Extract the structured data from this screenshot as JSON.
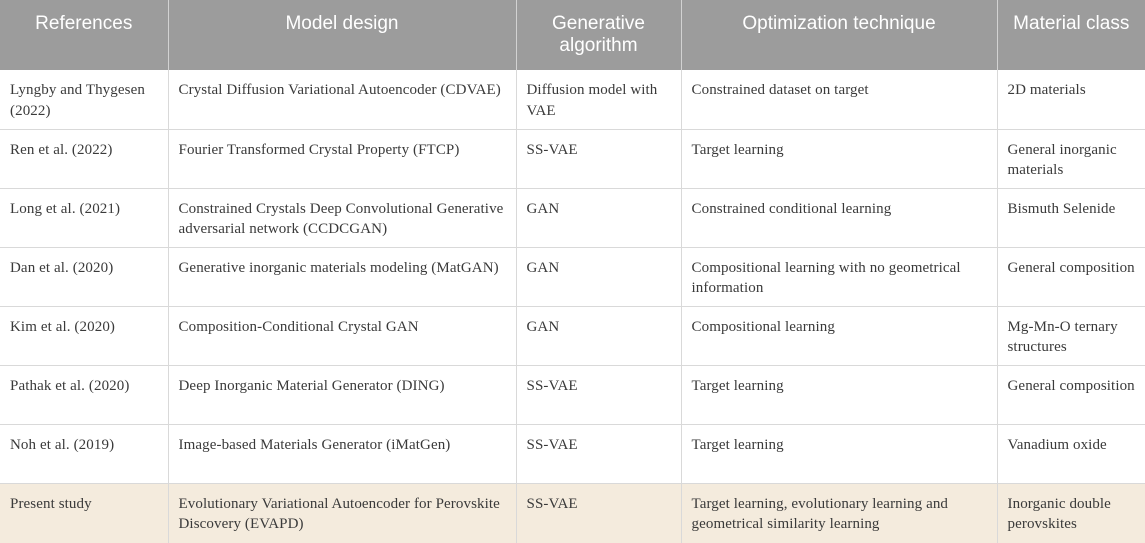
{
  "columns": [
    "References",
    "Model design",
    "Generative algorithm",
    "Optimization technique",
    "Material class"
  ],
  "rows": [
    {
      "reference": "Lyngby and Thygesen (2022)",
      "model": "Crystal Diffusion Variational Autoencoder (CDVAE)",
      "algorithm": "Diffusion model with VAE",
      "optimization": "Constrained dataset on target",
      "material": "2D materials"
    },
    {
      "reference": "Ren et al. (2022)",
      "model": "Fourier Transformed Crystal Property (FTCP)",
      "algorithm": "SS-VAE",
      "optimization": "Target learning",
      "material": "General inorganic materials"
    },
    {
      "reference": "Long et al. (2021)",
      "model": "Constrained Crystals Deep Convolutional Generative adversarial network (CCDCGAN)",
      "algorithm": "GAN",
      "optimization": "Constrained conditional learning",
      "material": "Bismuth Selenide"
    },
    {
      "reference": "Dan et al. (2020)",
      "model": "Generative inorganic materials modeling (MatGAN)",
      "algorithm": "GAN",
      "optimization": "Compositional learning with no geometrical information",
      "material": "General composition"
    },
    {
      "reference": "Kim et al. (2020)",
      "model": "Composition-Conditional Crystal GAN",
      "algorithm": "GAN",
      "optimization": "Compositional learning",
      "material": "Mg-Mn-O ternary structures"
    },
    {
      "reference": "Pathak et al. (2020)",
      "model": "Deep Inorganic Material Generator (DING)",
      "algorithm": "SS-VAE",
      "optimization": "Target learning",
      "material": "General composition"
    },
    {
      "reference": "Noh et al. (2019)",
      "model": "Image-based Materials Generator (iMatGen)",
      "algorithm": "SS-VAE",
      "optimization": "Target learning",
      "material": "Vanadium oxide"
    },
    {
      "reference": "Present study",
      "model": "Evolutionary Variational Autoencoder for Perovskite Discovery (EVAPD)",
      "algorithm": "SS-VAE",
      "optimization": "Target learning, evolutionary learning and geometrical similarity learning",
      "material": "Inorganic double perovskites"
    }
  ],
  "colors": {
    "header_bg": "#9c9c9c",
    "header_text": "#ffffff",
    "highlight_row": "#f4ebdd",
    "grid": "#d9d9d9"
  }
}
